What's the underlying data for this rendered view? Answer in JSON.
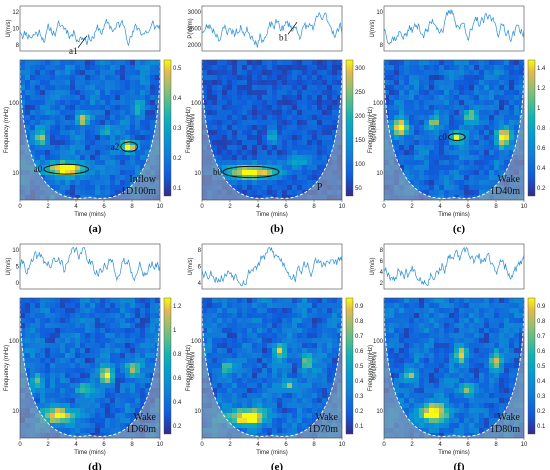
{
  "figure": {
    "panels": [
      {
        "caption": "(a)",
        "signal_ylabel": "U(m/s)",
        "signal_ticks": [
          "12",
          "10",
          "8"
        ],
        "signal_ylim": [
          7.5,
          12.5
        ],
        "signal_annotation": "a1",
        "tags": [
          "Inflow",
          "1D100m"
        ],
        "ellipse_labels": [
          "a0",
          "a2"
        ],
        "extra_label": "",
        "colorbar_label": "Magnitude",
        "colorbar_ticks": [
          "0.5",
          "0.4",
          "0.3",
          "0.2",
          "0.1"
        ],
        "colorbar_max": 0.55,
        "seed": 11
      },
      {
        "caption": "(b)",
        "signal_ylabel": "P(W/m)",
        "signal_ticks": [
          "3000",
          "2500",
          "2000"
        ],
        "signal_ylim": [
          1800,
          3200
        ],
        "signal_annotation": "b1",
        "tags": [],
        "ellipse_labels": [
          "b0"
        ],
        "extra_label": "P",
        "colorbar_label": "Magnitude",
        "colorbar_ticks": [
          "300",
          "250",
          "200",
          "150",
          "100",
          "50"
        ],
        "colorbar_max": 330,
        "seed": 23
      },
      {
        "caption": "(c)",
        "signal_ylabel": "U(m/s)",
        "signal_ticks": [
          "10",
          "8"
        ],
        "signal_ylim": [
          7.5,
          12
        ],
        "signal_annotation": "",
        "tags": [
          "Wake",
          "1D40m"
        ],
        "ellipse_labels": [
          "c0"
        ],
        "extra_label": "",
        "colorbar_label": "Magnitude",
        "colorbar_ticks": [
          "1.4",
          "1.2",
          "1",
          "0.8",
          "0.6",
          "0.4",
          "0.2"
        ],
        "colorbar_max": 1.5,
        "seed": 37
      },
      {
        "caption": "(d)",
        "signal_ylabel": "U(m/s)",
        "signal_ticks": [
          "10",
          "5",
          "0"
        ],
        "signal_ylim": [
          0,
          11
        ],
        "signal_annotation": "",
        "tags": [
          "Wake",
          "1D60m"
        ],
        "ellipse_labels": [],
        "extra_label": "",
        "colorbar_label": "Magnitude",
        "colorbar_ticks": [
          "1.2",
          "1",
          "0.8",
          "0.6",
          "0.4",
          "0.2"
        ],
        "colorbar_max": 1.3,
        "seed": 41
      },
      {
        "caption": "(e)",
        "signal_ylabel": "U(m/s)",
        "signal_ticks": [
          "8",
          "6",
          "4"
        ],
        "signal_ylim": [
          3,
          9
        ],
        "signal_annotation": "",
        "tags": [
          "Wake",
          "1D70m"
        ],
        "ellipse_labels": [],
        "extra_label": "",
        "colorbar_label": "Magnitude",
        "colorbar_ticks": [
          "0.9",
          "0.8",
          "0.7",
          "0.6",
          "0.5",
          "0.4",
          "0.3",
          "0.2",
          "0.1"
        ],
        "colorbar_max": 0.95,
        "seed": 53
      },
      {
        "caption": "(f)",
        "signal_ylabel": "U(m/s)",
        "signal_ticks": [
          "8",
          "6",
          "4",
          "2"
        ],
        "signal_ylim": [
          1.5,
          9
        ],
        "signal_annotation": "",
        "tags": [
          "Wake",
          "1D80m"
        ],
        "ellipse_labels": [],
        "extra_label": "",
        "colorbar_label": "Magnitude",
        "colorbar_ticks": [
          "0.9",
          "0.8",
          "0.7",
          "0.6",
          "0.5",
          "0.4",
          "0.3",
          "0.2",
          "0.1"
        ],
        "colorbar_max": 0.95,
        "seed": 67
      }
    ],
    "shared": {
      "scalogram_ylabel": "Frequency (mHz)",
      "scalogram_yticks": [
        "100",
        "10"
      ],
      "xlabel": "Time (mins)",
      "xticks": [
        "0",
        "2",
        "4",
        "6",
        "8",
        "10"
      ],
      "xlim": [
        0,
        10
      ]
    }
  },
  "chart_data": {
    "type": "heatmap",
    "description_layout": "2x3 grid of wavelet scalograms, each with a time-series strip above and a colorbar to the right",
    "x_axis": {
      "label": "Time (mins)",
      "range": [
        0,
        10
      ],
      "ticks": [
        0,
        2,
        4,
        6,
        8,
        10
      ]
    },
    "y_axis": {
      "label": "Frequency (mHz)",
      "scale": "log",
      "ticks": [
        100,
        10
      ]
    },
    "colormap": "parula",
    "cone_of_influence": true,
    "panels": [
      "(a)",
      "(b)",
      "(c)",
      "(d)",
      "(e)",
      "(f)"
    ]
  }
}
